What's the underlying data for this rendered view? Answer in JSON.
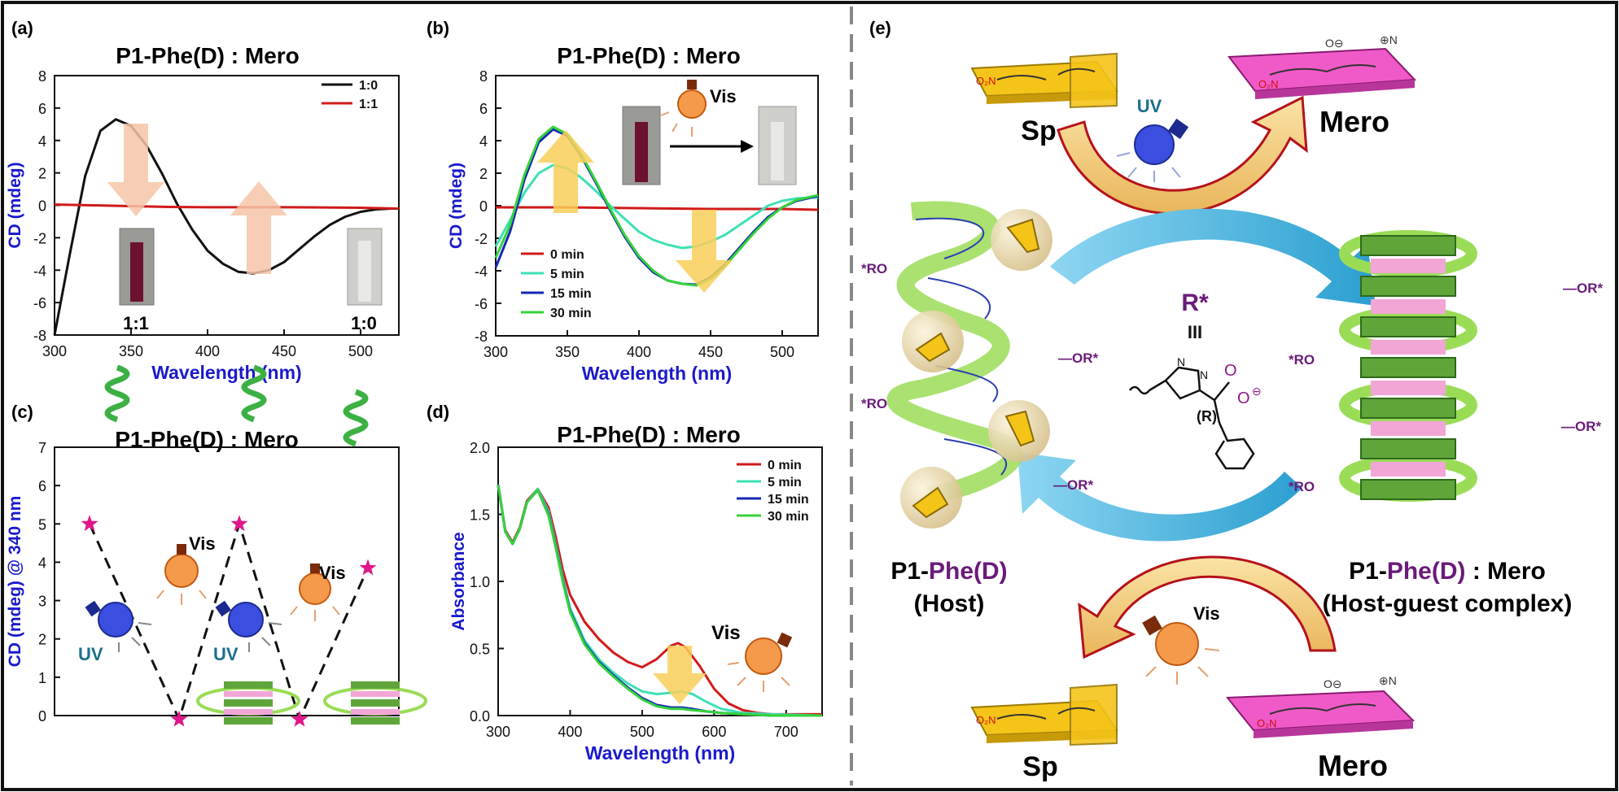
{
  "colors": {
    "axis_label": "#1a1acc",
    "magenta": "#e0168a",
    "purple": "#6a1b7a",
    "teal": "#1c6f8f",
    "red": "#d11a1a",
    "black": "#111111",
    "aqua": "#3ee0b5",
    "navy": "#1428b4",
    "green": "#35d33a",
    "gold": "#f2c230",
    "sp_yellow": "#f4c419",
    "mero_pink": "#f05ac8",
    "helix_green": "#9bdc57",
    "stack_green": "#5fa53a",
    "stack_pink": "#f2a6d6",
    "arc_blue": "#47b6e0",
    "bulb_orange": "#f59a4a",
    "bulb_blue": "#3b4ee0"
  },
  "panels": {
    "a": {
      "label": "(a)",
      "title": "P1-Phe(D) : Mero"
    },
    "b": {
      "label": "(b)",
      "title": "P1-Phe(D) : Mero"
    },
    "c": {
      "label": "(c)",
      "title": "P1-Phe(D) : Mero"
    },
    "d": {
      "label": "(d)",
      "title": "P1-Phe(D) : Mero"
    },
    "e": {
      "label": "(e)"
    }
  },
  "chart_data": [
    {
      "panel": "a",
      "type": "line",
      "title": "P1-Phe(D) : Mero",
      "xlabel": "Wavelength (nm)",
      "ylabel": "CD (mdeg)",
      "xlim": [
        300,
        525
      ],
      "ylim": [
        -8,
        8
      ],
      "xticks": [
        300,
        350,
        400,
        450,
        500
      ],
      "yticks": [
        -8,
        -6,
        -4,
        -2,
        0,
        2,
        4,
        6,
        8
      ],
      "legend_position": "top-right",
      "series": [
        {
          "name": "1:0",
          "color": "#111111",
          "x": [
            300,
            310,
            320,
            330,
            340,
            350,
            360,
            370,
            380,
            390,
            400,
            410,
            420,
            430,
            440,
            450,
            460,
            470,
            480,
            490,
            500,
            510,
            520,
            525
          ],
          "y": [
            -8.0,
            -3.0,
            1.8,
            4.6,
            5.3,
            4.9,
            3.7,
            2.0,
            0.1,
            -1.5,
            -2.8,
            -3.6,
            -4.1,
            -4.2,
            -4.0,
            -3.5,
            -2.7,
            -1.9,
            -1.2,
            -0.7,
            -0.4,
            -0.25,
            -0.2,
            -0.2
          ]
        },
        {
          "name": "1:1",
          "color": "#d11a1a",
          "x": [
            300,
            325,
            350,
            375,
            400,
            425,
            450,
            475,
            500,
            525
          ],
          "y": [
            0.05,
            0.0,
            -0.05,
            -0.1,
            -0.12,
            -0.12,
            -0.12,
            -0.13,
            -0.15,
            -0.2
          ]
        }
      ],
      "annotations": [
        "1:1",
        "1:0"
      ]
    },
    {
      "panel": "b",
      "type": "line",
      "title": "P1-Phe(D) : Mero",
      "xlabel": "Wavelength (nm)",
      "ylabel": "CD (mdeg)",
      "xlim": [
        300,
        525
      ],
      "ylim": [
        -8,
        8
      ],
      "xticks": [
        300,
        350,
        400,
        450,
        500
      ],
      "yticks": [
        -8,
        -6,
        -4,
        -2,
        0,
        2,
        4,
        6,
        8
      ],
      "legend_position": "bottom-left",
      "annotations": [
        "Vis"
      ],
      "series": [
        {
          "name": "0 min",
          "color": "#d11a1a",
          "x": [
            300,
            350,
            400,
            450,
            500,
            525
          ],
          "y": [
            -0.1,
            -0.1,
            -0.15,
            -0.2,
            -0.2,
            -0.25
          ]
        },
        {
          "name": "5 min",
          "color": "#3ee0b5",
          "x": [
            300,
            310,
            320,
            330,
            340,
            350,
            360,
            370,
            380,
            390,
            400,
            410,
            420,
            430,
            440,
            450,
            460,
            470,
            480,
            490,
            500,
            510,
            520,
            525
          ],
          "y": [
            -2.5,
            -0.9,
            0.8,
            2.0,
            2.5,
            2.3,
            1.7,
            0.9,
            0.0,
            -0.8,
            -1.6,
            -2.1,
            -2.4,
            -2.6,
            -2.5,
            -2.2,
            -1.8,
            -1.2,
            -0.6,
            0.0,
            0.3,
            0.45,
            0.5,
            0.5
          ]
        },
        {
          "name": "15 min",
          "color": "#1428b4",
          "x": [
            300,
            310,
            320,
            330,
            340,
            350,
            360,
            370,
            380,
            390,
            400,
            410,
            420,
            430,
            440,
            450,
            460,
            470,
            480,
            490,
            500,
            510,
            520,
            525
          ],
          "y": [
            -3.8,
            -1.6,
            1.6,
            3.9,
            4.7,
            4.3,
            3.0,
            1.4,
            -0.3,
            -1.9,
            -3.2,
            -4.1,
            -4.6,
            -4.8,
            -4.85,
            -4.4,
            -3.6,
            -2.6,
            -1.6,
            -0.7,
            -0.1,
            0.3,
            0.5,
            0.6
          ]
        },
        {
          "name": "30 min",
          "color": "#35d33a",
          "x": [
            300,
            310,
            320,
            330,
            340,
            350,
            360,
            370,
            380,
            390,
            400,
            410,
            420,
            430,
            440,
            450,
            460,
            470,
            480,
            490,
            500,
            510,
            520,
            525
          ],
          "y": [
            -3.2,
            -1.2,
            1.9,
            4.1,
            4.85,
            4.4,
            3.1,
            1.5,
            -0.2,
            -1.8,
            -3.1,
            -4.0,
            -4.6,
            -4.8,
            -4.9,
            -4.5,
            -3.7,
            -2.7,
            -1.7,
            -0.8,
            -0.1,
            0.35,
            0.55,
            0.65
          ]
        }
      ]
    },
    {
      "panel": "c",
      "type": "line",
      "title": "P1-Phe(D) : Mero",
      "ylabel": "CD (mdeg) @ 340 nm",
      "ylim": [
        0,
        7
      ],
      "yticks": [
        0,
        1,
        2,
        3,
        4,
        5,
        6,
        7
      ],
      "series": [
        {
          "name": "",
          "color": "#e0168a",
          "style": "dashed-black-with-star-markers",
          "x": [
            1,
            2,
            3,
            4,
            5
          ],
          "y": [
            5.0,
            -0.1,
            5.0,
            -0.1,
            3.85
          ]
        }
      ],
      "annotations": [
        "UV",
        "Vis",
        "UV",
        "Vis"
      ]
    },
    {
      "panel": "d",
      "type": "line",
      "title": "P1-Phe(D) : Mero",
      "xlabel": "Wavelength (nm)",
      "ylabel": "Absorbance",
      "xlim": [
        300,
        750
      ],
      "ylim": [
        0,
        2.0
      ],
      "xticks": [
        300,
        400,
        500,
        600,
        700
      ],
      "yticks": [
        0.0,
        0.5,
        1.0,
        1.5,
        2.0
      ],
      "legend_position": "top-right",
      "annotations": [
        "Vis"
      ],
      "series": [
        {
          "name": "0 min",
          "color": "#d11a1a",
          "x": [
            300,
            310,
            320,
            330,
            340,
            355,
            370,
            380,
            390,
            400,
            420,
            440,
            460,
            480,
            500,
            520,
            540,
            550,
            560,
            580,
            600,
            620,
            640,
            660,
            680,
            700,
            720,
            750
          ],
          "y": [
            1.72,
            1.38,
            1.29,
            1.4,
            1.6,
            1.69,
            1.55,
            1.33,
            1.08,
            0.9,
            0.7,
            0.57,
            0.47,
            0.4,
            0.36,
            0.42,
            0.52,
            0.54,
            0.51,
            0.37,
            0.2,
            0.09,
            0.04,
            0.02,
            0.01,
            0.01,
            0.01,
            0.01
          ]
        },
        {
          "name": "5 min",
          "color": "#3ee0b5",
          "x": [
            300,
            310,
            320,
            330,
            340,
            355,
            370,
            380,
            390,
            400,
            420,
            440,
            460,
            480,
            500,
            520,
            540,
            555,
            570,
            590,
            610,
            640,
            680,
            750
          ],
          "y": [
            1.72,
            1.37,
            1.28,
            1.39,
            1.59,
            1.69,
            1.52,
            1.28,
            1.02,
            0.8,
            0.56,
            0.42,
            0.32,
            0.24,
            0.18,
            0.16,
            0.17,
            0.18,
            0.16,
            0.1,
            0.05,
            0.02,
            0.01,
            0.0
          ]
        },
        {
          "name": "15 min",
          "color": "#1428b4",
          "x": [
            300,
            310,
            320,
            330,
            340,
            355,
            370,
            380,
            390,
            400,
            420,
            440,
            460,
            480,
            500,
            520,
            540,
            555,
            570,
            590,
            610,
            640,
            680,
            750
          ],
          "y": [
            1.72,
            1.37,
            1.28,
            1.39,
            1.59,
            1.68,
            1.5,
            1.26,
            1.0,
            0.78,
            0.54,
            0.4,
            0.3,
            0.21,
            0.13,
            0.08,
            0.06,
            0.06,
            0.05,
            0.03,
            0.02,
            0.01,
            0.0,
            0.0
          ]
        },
        {
          "name": "30 min",
          "color": "#35d33a",
          "x": [
            300,
            310,
            320,
            330,
            340,
            355,
            370,
            380,
            390,
            400,
            420,
            440,
            460,
            480,
            500,
            520,
            540,
            555,
            570,
            590,
            610,
            640,
            680,
            750
          ],
          "y": [
            1.72,
            1.37,
            1.28,
            1.39,
            1.59,
            1.68,
            1.49,
            1.25,
            0.99,
            0.77,
            0.53,
            0.39,
            0.29,
            0.2,
            0.12,
            0.07,
            0.05,
            0.05,
            0.04,
            0.03,
            0.02,
            0.01,
            0.0,
            0.0
          ]
        }
      ]
    }
  ],
  "scheme": {
    "sp_top": "Sp",
    "mero_top": "Mero",
    "uv": "UV",
    "sp_bottom": "Sp",
    "mero_bottom": "Mero",
    "vis": "Vis",
    "rstar": "R*",
    "roman": "III",
    "r_config": "(R)",
    "host_name": "P1-",
    "host_sub": "Phe(D)",
    "host_role": "(Host)",
    "complex_name": "P1-",
    "complex_sub": "Phe(D)",
    "complex_suffix": " : Mero",
    "complex_role": "(Host-guest complex)",
    "or_labels": [
      "*RO",
      "—OR*",
      "*RO",
      "—OR*",
      "*RO",
      "—OR*"
    ],
    "stack_or_labels": [
      "—OR*",
      "*RO",
      "—OR*",
      "*RO",
      "—OR*"
    ],
    "n_label": "N",
    "o_label": "O",
    "ominus_label": "O",
    "charge": "⊖",
    "plus": "⊕"
  }
}
